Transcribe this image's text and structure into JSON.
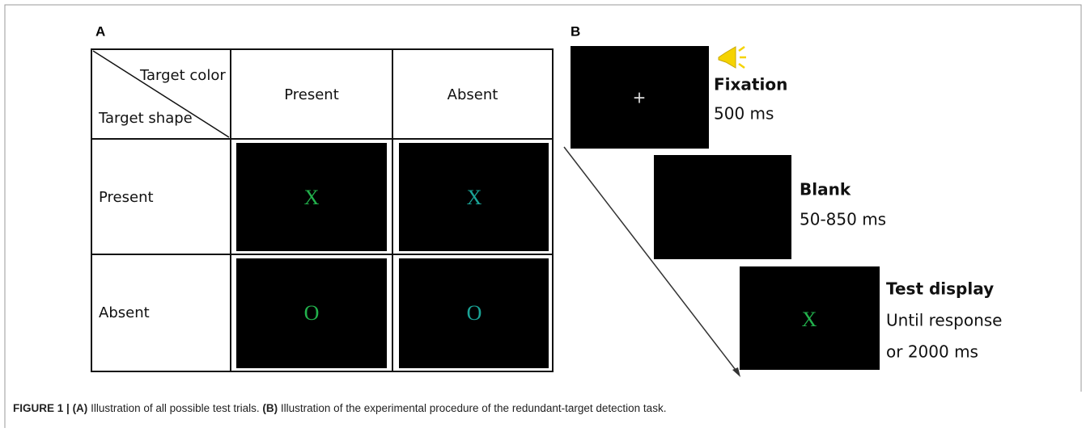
{
  "panel_a": {
    "label": "A",
    "header": {
      "target_color": "Target color",
      "target_shape": "Target shape",
      "columns": [
        "Present",
        "Absent"
      ]
    },
    "rows": [
      {
        "label": "Present",
        "cells": [
          "X",
          "X"
        ]
      },
      {
        "label": "Absent",
        "cells": [
          "O",
          "O"
        ]
      }
    ]
  },
  "panel_b": {
    "label": "B",
    "steps": [
      {
        "symbol": "+",
        "name": "Fixation",
        "duration": [
          "500 ms"
        ]
      },
      {
        "name": "Blank",
        "duration": [
          "50-850 ms"
        ]
      },
      {
        "symbol": "X",
        "name": "Test display",
        "duration": [
          "Until response",
          "or 2000 ms"
        ]
      }
    ]
  },
  "caption": {
    "figure": "FIGURE 1 |",
    "a_label": "(A)",
    "a_text": " Illustration of all possible test trials. ",
    "b_label": "(B)",
    "b_text": " Illustration of the experimental procedure of the redundant-target detection task."
  }
}
